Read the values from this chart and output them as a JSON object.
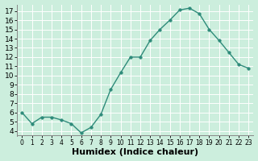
{
  "x": [
    0,
    1,
    2,
    3,
    4,
    5,
    6,
    7,
    8,
    9,
    10,
    11,
    12,
    13,
    14,
    15,
    16,
    17,
    18,
    19,
    20,
    21,
    22,
    23
  ],
  "y": [
    6.0,
    4.8,
    5.5,
    5.5,
    5.2,
    4.8,
    3.8,
    4.4,
    5.8,
    8.5,
    10.3,
    12.0,
    12.0,
    13.8,
    15.0,
    16.0,
    17.1,
    17.3,
    16.7,
    15.0,
    13.8,
    12.5,
    11.2,
    10.8
  ],
  "line_color": "#2e8b7a",
  "marker": "o",
  "markersize": 2.5,
  "linewidth": 1.0,
  "xlabel": "Humidex (Indice chaleur)",
  "ylim": [
    3.5,
    17.7
  ],
  "xlim": [
    -0.5,
    23.5
  ],
  "yticks": [
    4,
    5,
    6,
    7,
    8,
    9,
    10,
    11,
    12,
    13,
    14,
    15,
    16,
    17
  ],
  "xticks": [
    0,
    1,
    2,
    3,
    4,
    5,
    6,
    7,
    8,
    9,
    10,
    11,
    12,
    13,
    14,
    15,
    16,
    17,
    18,
    19,
    20,
    21,
    22,
    23
  ],
  "bg_color": "#cceedd",
  "grid_color": "#e8f8f8",
  "grid_minor_color": "#ddf0f0",
  "x_tick_fontsize": 5.5,
  "y_tick_fontsize": 6.5,
  "xlabel_fontsize": 8.0
}
